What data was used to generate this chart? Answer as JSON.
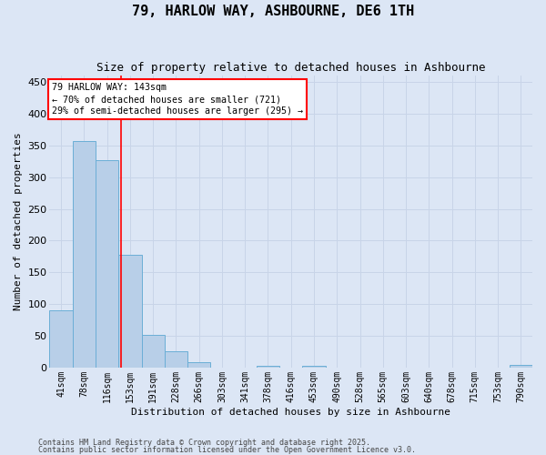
{
  "title1": "79, HARLOW WAY, ASHBOURNE, DE6 1TH",
  "title2": "Size of property relative to detached houses in Ashbourne",
  "xlabel": "Distribution of detached houses by size in Ashbourne",
  "ylabel": "Number of detached properties",
  "categories": [
    "41sqm",
    "78sqm",
    "116sqm",
    "153sqm",
    "191sqm",
    "228sqm",
    "266sqm",
    "303sqm",
    "341sqm",
    "378sqm",
    "416sqm",
    "453sqm",
    "490sqm",
    "528sqm",
    "565sqm",
    "603sqm",
    "640sqm",
    "678sqm",
    "715sqm",
    "753sqm",
    "790sqm"
  ],
  "values": [
    90,
    357,
    327,
    178,
    52,
    25,
    8,
    0,
    0,
    3,
    0,
    3,
    0,
    0,
    0,
    0,
    0,
    0,
    0,
    0,
    4
  ],
  "bar_color": "#b8cfe8",
  "bar_edge_color": "#6baed6",
  "grid_color": "#c8d4e8",
  "background_color": "#dce6f5",
  "annotation_line1": "79 HARLOW WAY: 143sqm",
  "annotation_line2": "← 70% of detached houses are smaller (721)",
  "annotation_line3": "29% of semi-detached houses are larger (295) →",
  "red_line_x": 2.62,
  "ylim": [
    0,
    460
  ],
  "yticks": [
    0,
    50,
    100,
    150,
    200,
    250,
    300,
    350,
    400,
    450
  ],
  "footer1": "Contains HM Land Registry data © Crown copyright and database right 2025.",
  "footer2": "Contains public sector information licensed under the Open Government Licence v3.0."
}
